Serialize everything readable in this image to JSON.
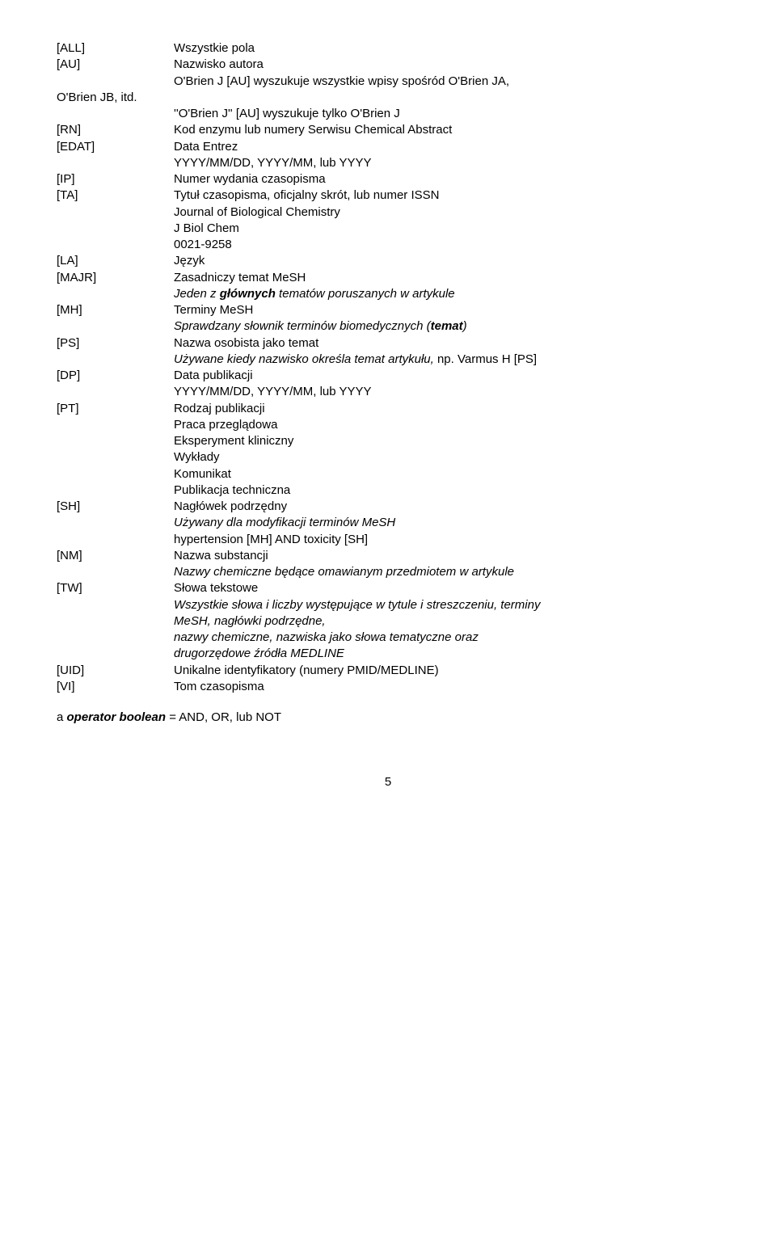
{
  "entries": [
    {
      "tag": "[ALL]",
      "lines": [
        {
          "text": "Wszystkie pola"
        }
      ]
    },
    {
      "tag": "[AU]",
      "lines": [
        {
          "text": "Nazwisko autora"
        },
        {
          "text": "O'Brien J [AU] wyszukuje wszystkie wpisy spośród O'Brien JA,"
        }
      ]
    },
    {
      "tag": "O'Brien JB, itd.",
      "lines": [
        {
          "text": ""
        },
        {
          "text": "''O'Brien J'' [AU] wyszukuje tylko O'Brien J"
        }
      ]
    },
    {
      "tag": "[RN]",
      "lines": [
        {
          "text": "Kod enzymu lub numery Serwisu Chemical Abstract"
        }
      ]
    },
    {
      "tag": "[EDAT]",
      "lines": [
        {
          "text": "Data Entrez"
        },
        {
          "text": "YYYY/MM/DD, YYYY/MM, lub YYYY"
        }
      ]
    },
    {
      "tag": "[IP]",
      "lines": [
        {
          "text": "Numer wydania czasopisma"
        }
      ]
    },
    {
      "tag": "[TA]",
      "lines": [
        {
          "text": "Tytuł czasopisma, oficjalny skrót, lub numer ISSN"
        },
        {
          "text": "Journal of Biological Chemistry"
        },
        {
          "text": "J Biol Chem"
        },
        {
          "text": "0021-9258"
        }
      ]
    },
    {
      "tag": "[LA]",
      "lines": [
        {
          "text": "Język"
        }
      ]
    },
    {
      "tag": "[MAJR]",
      "lines": [
        {
          "text": "Zasadniczy temat MeSH"
        },
        {
          "parts": [
            {
              "text": "Jeden z ",
              "style": "italic"
            },
            {
              "text": "głównych",
              "style": "bolditalic"
            },
            {
              "text": " tematów poruszanych w artykule",
              "style": "italic"
            }
          ]
        }
      ]
    },
    {
      "tag": "[MH]",
      "lines": [
        {
          "text": "Terminy MeSH"
        },
        {
          "parts": [
            {
              "text": "Sprawdzany słownik terminów biomedycznych (",
              "style": "italic"
            },
            {
              "text": "temat",
              "style": "bolditalic"
            },
            {
              "text": ")",
              "style": "italic"
            }
          ]
        }
      ]
    },
    {
      "tag": "[PS]",
      "lines": [
        {
          "text": "Nazwa osobista jako temat"
        },
        {
          "parts": [
            {
              "text": "Używane kiedy nazwisko określa temat artykułu, ",
              "style": "italic"
            },
            {
              "text": "np. Varmus H [PS]",
              "style": ""
            }
          ]
        }
      ]
    },
    {
      "tag": "[DP]",
      "lines": [
        {
          "text": "Data publikacji"
        },
        {
          "text": "YYYY/MM/DD, YYYY/MM, lub YYYY"
        }
      ]
    },
    {
      "tag": "[PT]",
      "lines": [
        {
          "text": "Rodzaj publikacji"
        },
        {
          "text": "Praca przeglądowa"
        },
        {
          "text": "Eksperyment kliniczny"
        },
        {
          "text": "Wykłady"
        },
        {
          "text": "Komunikat"
        },
        {
          "text": "Publikacja techniczna"
        }
      ]
    },
    {
      "tag": "[SH]",
      "lines": [
        {
          "text": "Nagłówek podrzędny"
        },
        {
          "text": "Używany dla modyfikacji terminów MeSH",
          "style": "italic"
        },
        {
          "text": "hypertension [MH] AND toxicity [SH]"
        }
      ]
    },
    {
      "tag": "[NM]",
      "lines": [
        {
          "text": "Nazwa substancji"
        },
        {
          "text": "Nazwy chemiczne będące omawianym przedmiotem w artykule",
          "style": "italic"
        }
      ]
    },
    {
      "tag": "[TW]",
      "lines": [
        {
          "text": "Słowa tekstowe"
        },
        {
          "text": "Wszystkie słowa i liczby występujące w tytule i streszczeniu, terminy",
          "style": "italic"
        },
        {
          "text": "MeSH, nagłówki podrzędne,",
          "style": "italic"
        },
        {
          "text": "nazwy chemiczne, nazwiska jako słowa tematyczne oraz",
          "style": "italic"
        },
        {
          "text": "drugorzędowe źródła MEDLINE",
          "style": "italic"
        }
      ]
    },
    {
      "tag": "[UID]",
      "lines": [
        {
          "text": "Unikalne identyfikatory (numery PMID/MEDLINE)"
        }
      ]
    },
    {
      "tag": "[VI]",
      "lines": [
        {
          "text": "Tom czasopisma"
        }
      ]
    }
  ],
  "footer": {
    "prefix": "a ",
    "bold": "operator boolean",
    "suffix": " = AND, OR, lub NOT"
  },
  "page_number": "5"
}
